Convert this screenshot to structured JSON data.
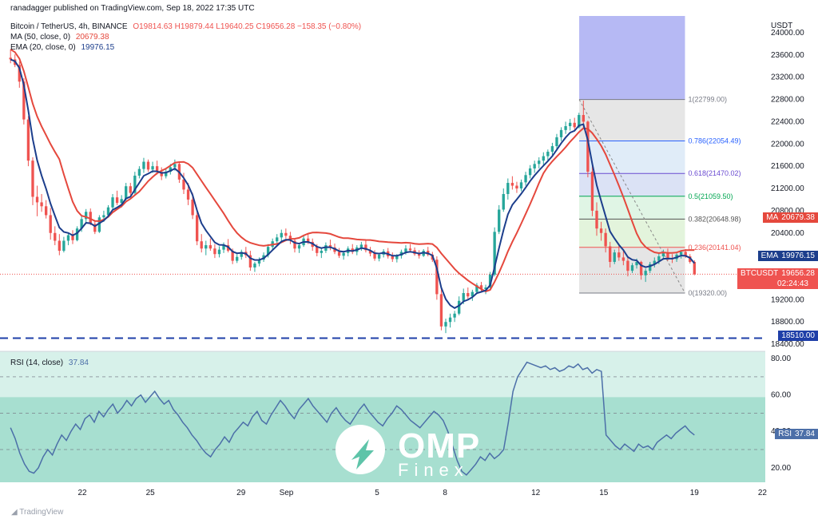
{
  "header": {
    "published": "ranadagger published on TradingView.com, Sep 18, 2022 17:35 UTC",
    "symbol": "Bitcoin / TetherUS, 4h, BINANCE",
    "ohlc": "O19814.63  H19879.44  L19640.25  C19656.28  −158.35 (−0.80%)",
    "ma_label": "MA (50, close, 0)",
    "ma_value": "20679.38",
    "ema_label": "EMA (20, close, 0)",
    "ema_value": "19976.15",
    "rsi_label": "RSI (14, close)",
    "rsi_value": "37.84"
  },
  "badges": {
    "ma_tag": "MA",
    "ma_value": "20679.38",
    "ema_tag": "EMA",
    "ema_value": "19976.15",
    "price_tag": "BTCUSDT",
    "price_value": "19656.28",
    "price_timer": "02:24:43",
    "support_value": "18510.00",
    "rsi_tag": "RSI",
    "rsi_value": "37.84"
  },
  "footer": {
    "tv_logo": "TradingView"
  },
  "watermark": {
    "brand": "OMP",
    "sub": "Finex"
  },
  "colors": {
    "bull": "#26a69a",
    "bear": "#ef5350",
    "ma": "#e5483d",
    "ema": "#1c3e8c",
    "rsi": "#4c6fa8",
    "support": "#1f3fa8",
    "rsi_bg": "#5ec4a9"
  },
  "chart_data": {
    "type": "candlestick",
    "price_axis_label": "USDT",
    "price_ticks": [
      "24000.00",
      "23600.00",
      "23200.00",
      "22800.00",
      "22400.00",
      "22000.00",
      "21600.00",
      "21200.00",
      "20800.00",
      "20400.00",
      "19600.00",
      "19200.00",
      "18800.00",
      "18400.00"
    ],
    "price_range": [
      18330,
      24300
    ],
    "date_ticks": [
      "22",
      "25",
      "29",
      "Sep",
      "5",
      "8",
      "12",
      "15",
      "19",
      "22"
    ],
    "date_tick_bars": [
      38,
      74,
      122,
      146,
      194,
      230,
      278,
      314,
      362,
      398
    ],
    "bar_count": 400,
    "ohlc": [
      [
        23550,
        23700,
        23450,
        23520
      ],
      [
        23520,
        23610,
        23380,
        23420
      ],
      [
        23420,
        23480,
        23010,
        23120
      ],
      [
        23120,
        23180,
        22350,
        22440
      ],
      [
        22440,
        22500,
        21600,
        21700
      ],
      [
        21700,
        21760,
        20900,
        21050
      ],
      [
        21050,
        21250,
        20700,
        20950
      ],
      [
        20950,
        21100,
        20780,
        20880
      ],
      [
        20880,
        20990,
        20660,
        20720
      ],
      [
        20720,
        20850,
        20280,
        20400
      ],
      [
        20400,
        20520,
        20180,
        20260
      ],
      [
        20260,
        20380,
        20000,
        20080
      ],
      [
        20080,
        20330,
        20050,
        20260
      ],
      [
        20260,
        20400,
        20180,
        20360
      ],
      [
        20360,
        20450,
        20200,
        20270
      ],
      [
        20270,
        20520,
        20250,
        20480
      ],
      [
        20480,
        20700,
        20420,
        20650
      ],
      [
        20650,
        20830,
        20580,
        20780
      ],
      [
        20780,
        20840,
        20540,
        20560
      ],
      [
        20560,
        20620,
        20380,
        20420
      ],
      [
        20420,
        20720,
        20400,
        20680
      ],
      [
        20680,
        20800,
        20600,
        20720
      ],
      [
        20720,
        20900,
        20680,
        20860
      ],
      [
        20860,
        21100,
        20820,
        21040
      ],
      [
        21040,
        21160,
        20900,
        20940
      ],
      [
        20940,
        21080,
        20860,
        21010
      ],
      [
        21010,
        21300,
        20980,
        21240
      ],
      [
        21240,
        21300,
        21080,
        21120
      ],
      [
        21120,
        21500,
        21080,
        21430
      ],
      [
        21430,
        21600,
        21380,
        21550
      ],
      [
        21550,
        21750,
        21480,
        21680
      ],
      [
        21680,
        21720,
        21500,
        21540
      ],
      [
        21540,
        21680,
        21480,
        21600
      ],
      [
        21600,
        21700,
        21450,
        21500
      ],
      [
        21500,
        21580,
        21350,
        21420
      ],
      [
        21420,
        21550,
        21380,
        21500
      ],
      [
        21500,
        21640,
        21450,
        21580
      ],
      [
        21580,
        21720,
        21520,
        21640
      ],
      [
        21640,
        21680,
        21300,
        21360
      ],
      [
        21360,
        21480,
        21100,
        21180
      ],
      [
        21180,
        21300,
        20900,
        21000
      ],
      [
        21000,
        21120,
        20650,
        20720
      ],
      [
        20720,
        20800,
        20180,
        20250
      ],
      [
        20250,
        20380,
        20050,
        20120
      ],
      [
        20120,
        20260,
        20000,
        20180
      ],
      [
        20180,
        20300,
        20080,
        20120
      ],
      [
        20120,
        20200,
        19950,
        20020
      ],
      [
        20020,
        20160,
        19960,
        20100
      ],
      [
        20100,
        20230,
        20040,
        20180
      ],
      [
        20180,
        20290,
        20050,
        20080
      ],
      [
        20080,
        20120,
        19840,
        19900
      ],
      [
        19900,
        20020,
        19860,
        19970
      ],
      [
        19970,
        20100,
        19920,
        20060
      ],
      [
        20060,
        20150,
        19950,
        20000
      ],
      [
        20000,
        20080,
        19720,
        19780
      ],
      [
        19780,
        19880,
        19700,
        19850
      ],
      [
        19850,
        19960,
        19800,
        19920
      ],
      [
        19920,
        20050,
        19880,
        20000
      ],
      [
        20000,
        20200,
        19960,
        20150
      ],
      [
        20150,
        20300,
        20080,
        20250
      ],
      [
        20250,
        20380,
        20180,
        20320
      ],
      [
        20320,
        20460,
        20260,
        20400
      ],
      [
        20400,
        20480,
        20300,
        20350
      ],
      [
        20350,
        20420,
        20200,
        20260
      ],
      [
        20260,
        20300,
        20050,
        20120
      ],
      [
        20120,
        20220,
        20040,
        20180
      ],
      [
        20180,
        20350,
        20150,
        20300
      ],
      [
        20300,
        20380,
        20200,
        20240
      ],
      [
        20240,
        20300,
        20080,
        20150
      ],
      [
        20150,
        20200,
        19980,
        20040
      ],
      [
        20040,
        20120,
        19950,
        20080
      ],
      [
        20080,
        20230,
        20040,
        20180
      ],
      [
        20180,
        20280,
        20090,
        20140
      ],
      [
        20140,
        20210,
        20020,
        20060
      ],
      [
        20060,
        20130,
        19950,
        19990
      ],
      [
        19990,
        20080,
        19920,
        20040
      ],
      [
        20040,
        20160,
        19980,
        20120
      ],
      [
        20120,
        20200,
        20020,
        20060
      ],
      [
        20060,
        20180,
        20000,
        20140
      ],
      [
        20140,
        20240,
        20080,
        20190
      ],
      [
        20190,
        20260,
        20050,
        20090
      ],
      [
        20090,
        20150,
        19980,
        20030
      ],
      [
        20030,
        20090,
        19900,
        19940
      ],
      [
        19940,
        20040,
        19890,
        20010
      ],
      [
        20010,
        20110,
        19960,
        20070
      ],
      [
        20070,
        20130,
        19940,
        19980
      ],
      [
        19980,
        20050,
        19880,
        19930
      ],
      [
        19930,
        20020,
        19870,
        19990
      ],
      [
        19990,
        20100,
        19940,
        20060
      ],
      [
        20060,
        20180,
        20010,
        20120
      ],
      [
        20120,
        20200,
        20050,
        20090
      ],
      [
        20090,
        20140,
        19990,
        20020
      ],
      [
        20020,
        20090,
        19940,
        19990
      ],
      [
        19990,
        20110,
        19970,
        20080
      ],
      [
        20080,
        20150,
        19980,
        20010
      ],
      [
        20010,
        20060,
        19880,
        19920
      ],
      [
        19920,
        19980,
        19200,
        19300
      ],
      [
        19300,
        19420,
        18650,
        18720
      ],
      [
        18720,
        18860,
        18600,
        18800
      ],
      [
        18800,
        18950,
        18700,
        18880
      ],
      [
        18880,
        19000,
        18800,
        18950
      ],
      [
        18950,
        19260,
        18920,
        19180
      ],
      [
        19180,
        19400,
        19120,
        19320
      ],
      [
        19320,
        19420,
        19200,
        19260
      ],
      [
        19260,
        19380,
        19180,
        19340
      ],
      [
        19340,
        19500,
        19300,
        19460
      ],
      [
        19460,
        19520,
        19340,
        19390
      ],
      [
        19390,
        19470,
        19300,
        19420
      ],
      [
        19420,
        19700,
        19400,
        19650
      ],
      [
        19650,
        20500,
        19620,
        20420
      ],
      [
        20420,
        20900,
        20380,
        20820
      ],
      [
        20820,
        21200,
        20780,
        21100
      ],
      [
        21100,
        21380,
        21000,
        21300
      ],
      [
        21300,
        21420,
        21180,
        21250
      ],
      [
        21250,
        21320,
        21120,
        21200
      ],
      [
        21200,
        21360,
        21150,
        21310
      ],
      [
        21310,
        21500,
        21250,
        21440
      ],
      [
        21440,
        21620,
        21380,
        21560
      ],
      [
        21560,
        21700,
        21480,
        21640
      ],
      [
        21640,
        21760,
        21560,
        21700
      ],
      [
        21700,
        21850,
        21620,
        21780
      ],
      [
        21780,
        21900,
        21700,
        21860
      ],
      [
        21860,
        22020,
        21800,
        21960
      ],
      [
        21960,
        22180,
        21900,
        22120
      ],
      [
        22120,
        22300,
        22050,
        22250
      ],
      [
        22250,
        22400,
        22180,
        22320
      ],
      [
        22320,
        22450,
        22240,
        22380
      ],
      [
        22380,
        22470,
        22240,
        22300
      ],
      [
        22300,
        22560,
        22280,
        22520
      ],
      [
        22520,
        22780,
        22300,
        22400
      ],
      [
        22400,
        22420,
        21400,
        21500
      ],
      [
        21500,
        21600,
        20700,
        20800
      ],
      [
        20800,
        20950,
        20350,
        20480
      ],
      [
        20480,
        20600,
        20260,
        20400
      ],
      [
        20400,
        20480,
        20050,
        20160
      ],
      [
        20160,
        20240,
        19780,
        19880
      ],
      [
        19880,
        20100,
        19840,
        20050
      ],
      [
        20050,
        20200,
        19900,
        19960
      ],
      [
        19960,
        20080,
        19820,
        19900
      ],
      [
        19900,
        19960,
        19620,
        19720
      ],
      [
        19720,
        19860,
        19680,
        19820
      ],
      [
        19820,
        19940,
        19760,
        19880
      ],
      [
        19880,
        19900,
        19560,
        19640
      ],
      [
        19640,
        19760,
        19520,
        19720
      ],
      [
        19720,
        19880,
        19680,
        19840
      ],
      [
        19840,
        19960,
        19780,
        19900
      ],
      [
        19900,
        20040,
        19840,
        19980
      ],
      [
        19980,
        20100,
        19920,
        20040
      ],
      [
        20040,
        20120,
        19900,
        19950
      ],
      [
        19950,
        20020,
        19860,
        19930
      ],
      [
        19930,
        20060,
        19880,
        20010
      ],
      [
        20010,
        20090,
        19940,
        20060
      ],
      [
        20060,
        20110,
        19950,
        19980
      ],
      [
        19980,
        20020,
        19850,
        19880
      ],
      [
        19880,
        19910,
        19640,
        19660
      ]
    ],
    "ma_50_value": 20679.38,
    "ema_20_value": 19976.15,
    "fib_levels": [
      {
        "label": "1(22799.00)",
        "value": 22799.0
      },
      {
        "label": "0.786(22054.49)",
        "value": 22054.49
      },
      {
        "label": "0.618(21470.02)",
        "value": 21470.02
      },
      {
        "label": "0.5(21059.50)",
        "value": 21059.5
      },
      {
        "label": "0.382(20648.98)",
        "value": 20648.98
      },
      {
        "label": "0.236(20141.04)",
        "value": 20141.04
      },
      {
        "label": "0(19320.00)",
        "value": 19320.0
      }
    ],
    "support_level": 18510.0,
    "rsi": {
      "ticks": [
        "80.00",
        "60.00",
        "40.00",
        "20.00"
      ],
      "range": [
        12,
        84
      ],
      "bands": [
        70,
        50,
        30
      ],
      "values": [
        42,
        36,
        28,
        22,
        18,
        17,
        20,
        26,
        30,
        27,
        33,
        38,
        35,
        40,
        44,
        41,
        47,
        49,
        45,
        51,
        48,
        52,
        55,
        50,
        53,
        57,
        54,
        58,
        60,
        56,
        59,
        62,
        58,
        55,
        57,
        52,
        49,
        45,
        42,
        38,
        35,
        31,
        28,
        26,
        30,
        33,
        37,
        34,
        39,
        42,
        45,
        43,
        48,
        51,
        46,
        44,
        49,
        53,
        57,
        54,
        50,
        47,
        52,
        55,
        58,
        54,
        51,
        48,
        45,
        50,
        53,
        49,
        46,
        44,
        48,
        52,
        55,
        51,
        48,
        45,
        43,
        47,
        50,
        54,
        52,
        49,
        46,
        44,
        42,
        45,
        48,
        51,
        49,
        46,
        40,
        32,
        24,
        18,
        16,
        19,
        22,
        26,
        24,
        28,
        25,
        27,
        30,
        45,
        62,
        70,
        74,
        78,
        77,
        76,
        75,
        76,
        74,
        75,
        73,
        74,
        76,
        75,
        77,
        74,
        75,
        72,
        74,
        73,
        38,
        35,
        32,
        30,
        33,
        31,
        29,
        33,
        31,
        32,
        30,
        34,
        36,
        38,
        36,
        39,
        41,
        43,
        40,
        38
      ]
    }
  }
}
